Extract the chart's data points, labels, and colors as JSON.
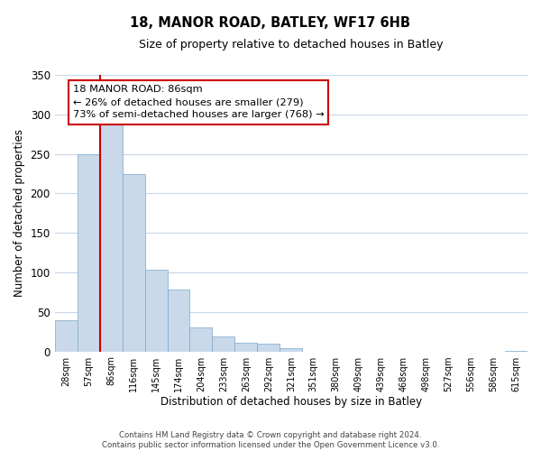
{
  "title": "18, MANOR ROAD, BATLEY, WF17 6HB",
  "subtitle": "Size of property relative to detached houses in Batley",
  "xlabel": "Distribution of detached houses by size in Batley",
  "ylabel": "Number of detached properties",
  "bar_labels": [
    "28sqm",
    "57sqm",
    "86sqm",
    "116sqm",
    "145sqm",
    "174sqm",
    "204sqm",
    "233sqm",
    "263sqm",
    "292sqm",
    "321sqm",
    "351sqm",
    "380sqm",
    "409sqm",
    "439sqm",
    "468sqm",
    "498sqm",
    "527sqm",
    "556sqm",
    "586sqm",
    "615sqm"
  ],
  "bar_values": [
    39,
    250,
    293,
    225,
    103,
    78,
    30,
    19,
    11,
    10,
    4,
    0,
    0,
    0,
    0,
    0,
    0,
    0,
    0,
    0,
    1
  ],
  "bar_color": "#c9d9ea",
  "bar_edge_color": "#7aa8cc",
  "highlight_line_index": 2,
  "highlight_color": "#cc0000",
  "annotation_title": "18 MANOR ROAD: 86sqm",
  "annotation_line1": "← 26% of detached houses are smaller (279)",
  "annotation_line2": "73% of semi-detached houses are larger (768) →",
  "annotation_box_color": "#ffffff",
  "annotation_box_edge_color": "#cc0000",
  "ylim": [
    0,
    350
  ],
  "yticks": [
    0,
    50,
    100,
    150,
    200,
    250,
    300,
    350
  ],
  "footer_line1": "Contains HM Land Registry data © Crown copyright and database right 2024.",
  "footer_line2": "Contains public sector information licensed under the Open Government Licence v3.0.",
  "background_color": "#ffffff",
  "grid_color": "#c8d8e8"
}
